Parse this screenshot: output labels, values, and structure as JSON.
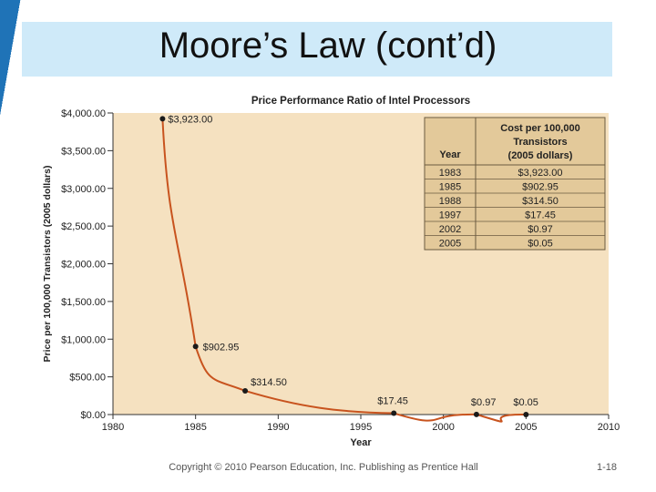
{
  "slide": {
    "title": "Moore’s Law (cont’d)",
    "footer": "Copyright © 2010 Pearson Education, Inc. Publishing as Prentice Hall",
    "page_number": "1-18"
  },
  "colors": {
    "title_band": "#cfeaf9",
    "stripe": "#1f73b7",
    "plot_bg": "#f5e1c0",
    "curve": "#c8531e",
    "table_bg": "#e3c99a",
    "point": "#1a1a1a"
  },
  "chart_data": {
    "type": "line",
    "title": "Price Performance Ratio of Intel Processors",
    "xlabel": "Year",
    "ylabel": "Price per 100,000 Transistors (2005 dollars)",
    "xlim": [
      1980,
      2010
    ],
    "ylim": [
      0,
      4000
    ],
    "x_ticks": [
      1980,
      1985,
      1990,
      1995,
      2000,
      2005,
      2010
    ],
    "y_ticks": [
      0,
      500,
      1000,
      1500,
      2000,
      2500,
      3000,
      3500,
      4000
    ],
    "y_tick_labels": [
      "$0.00",
      "$500.00",
      "$1,000.00",
      "$1,500.00",
      "$2,000.00",
      "$2,500.00",
      "$3,000.00",
      "$3,500.00",
      "$4,000.00"
    ],
    "series": [
      {
        "name": "Cost per 100,000 Transistors",
        "x": [
          1983,
          1985,
          1988,
          1997,
          2002,
          2005
        ],
        "y": [
          3923.0,
          902.95,
          314.5,
          17.45,
          0.97,
          0.05
        ],
        "labels": [
          "$3,923.00",
          "$902.95",
          "$314.50",
          "$17.45",
          "$0.97",
          "$0.05"
        ]
      }
    ],
    "table": {
      "headers": [
        "Year",
        "Cost per 100,000 Transistors (2005 dollars)"
      ],
      "header_lines": [
        "Cost per 100,000",
        "Transistors",
        "(2005 dollars)"
      ],
      "rows": [
        [
          "1983",
          "$3,923.00"
        ],
        [
          "1985",
          "$902.95"
        ],
        [
          "1988",
          "$314.50"
        ],
        [
          "1997",
          "$17.45"
        ],
        [
          "2002",
          "$0.97"
        ],
        [
          "2005",
          "$0.05"
        ]
      ]
    }
  }
}
